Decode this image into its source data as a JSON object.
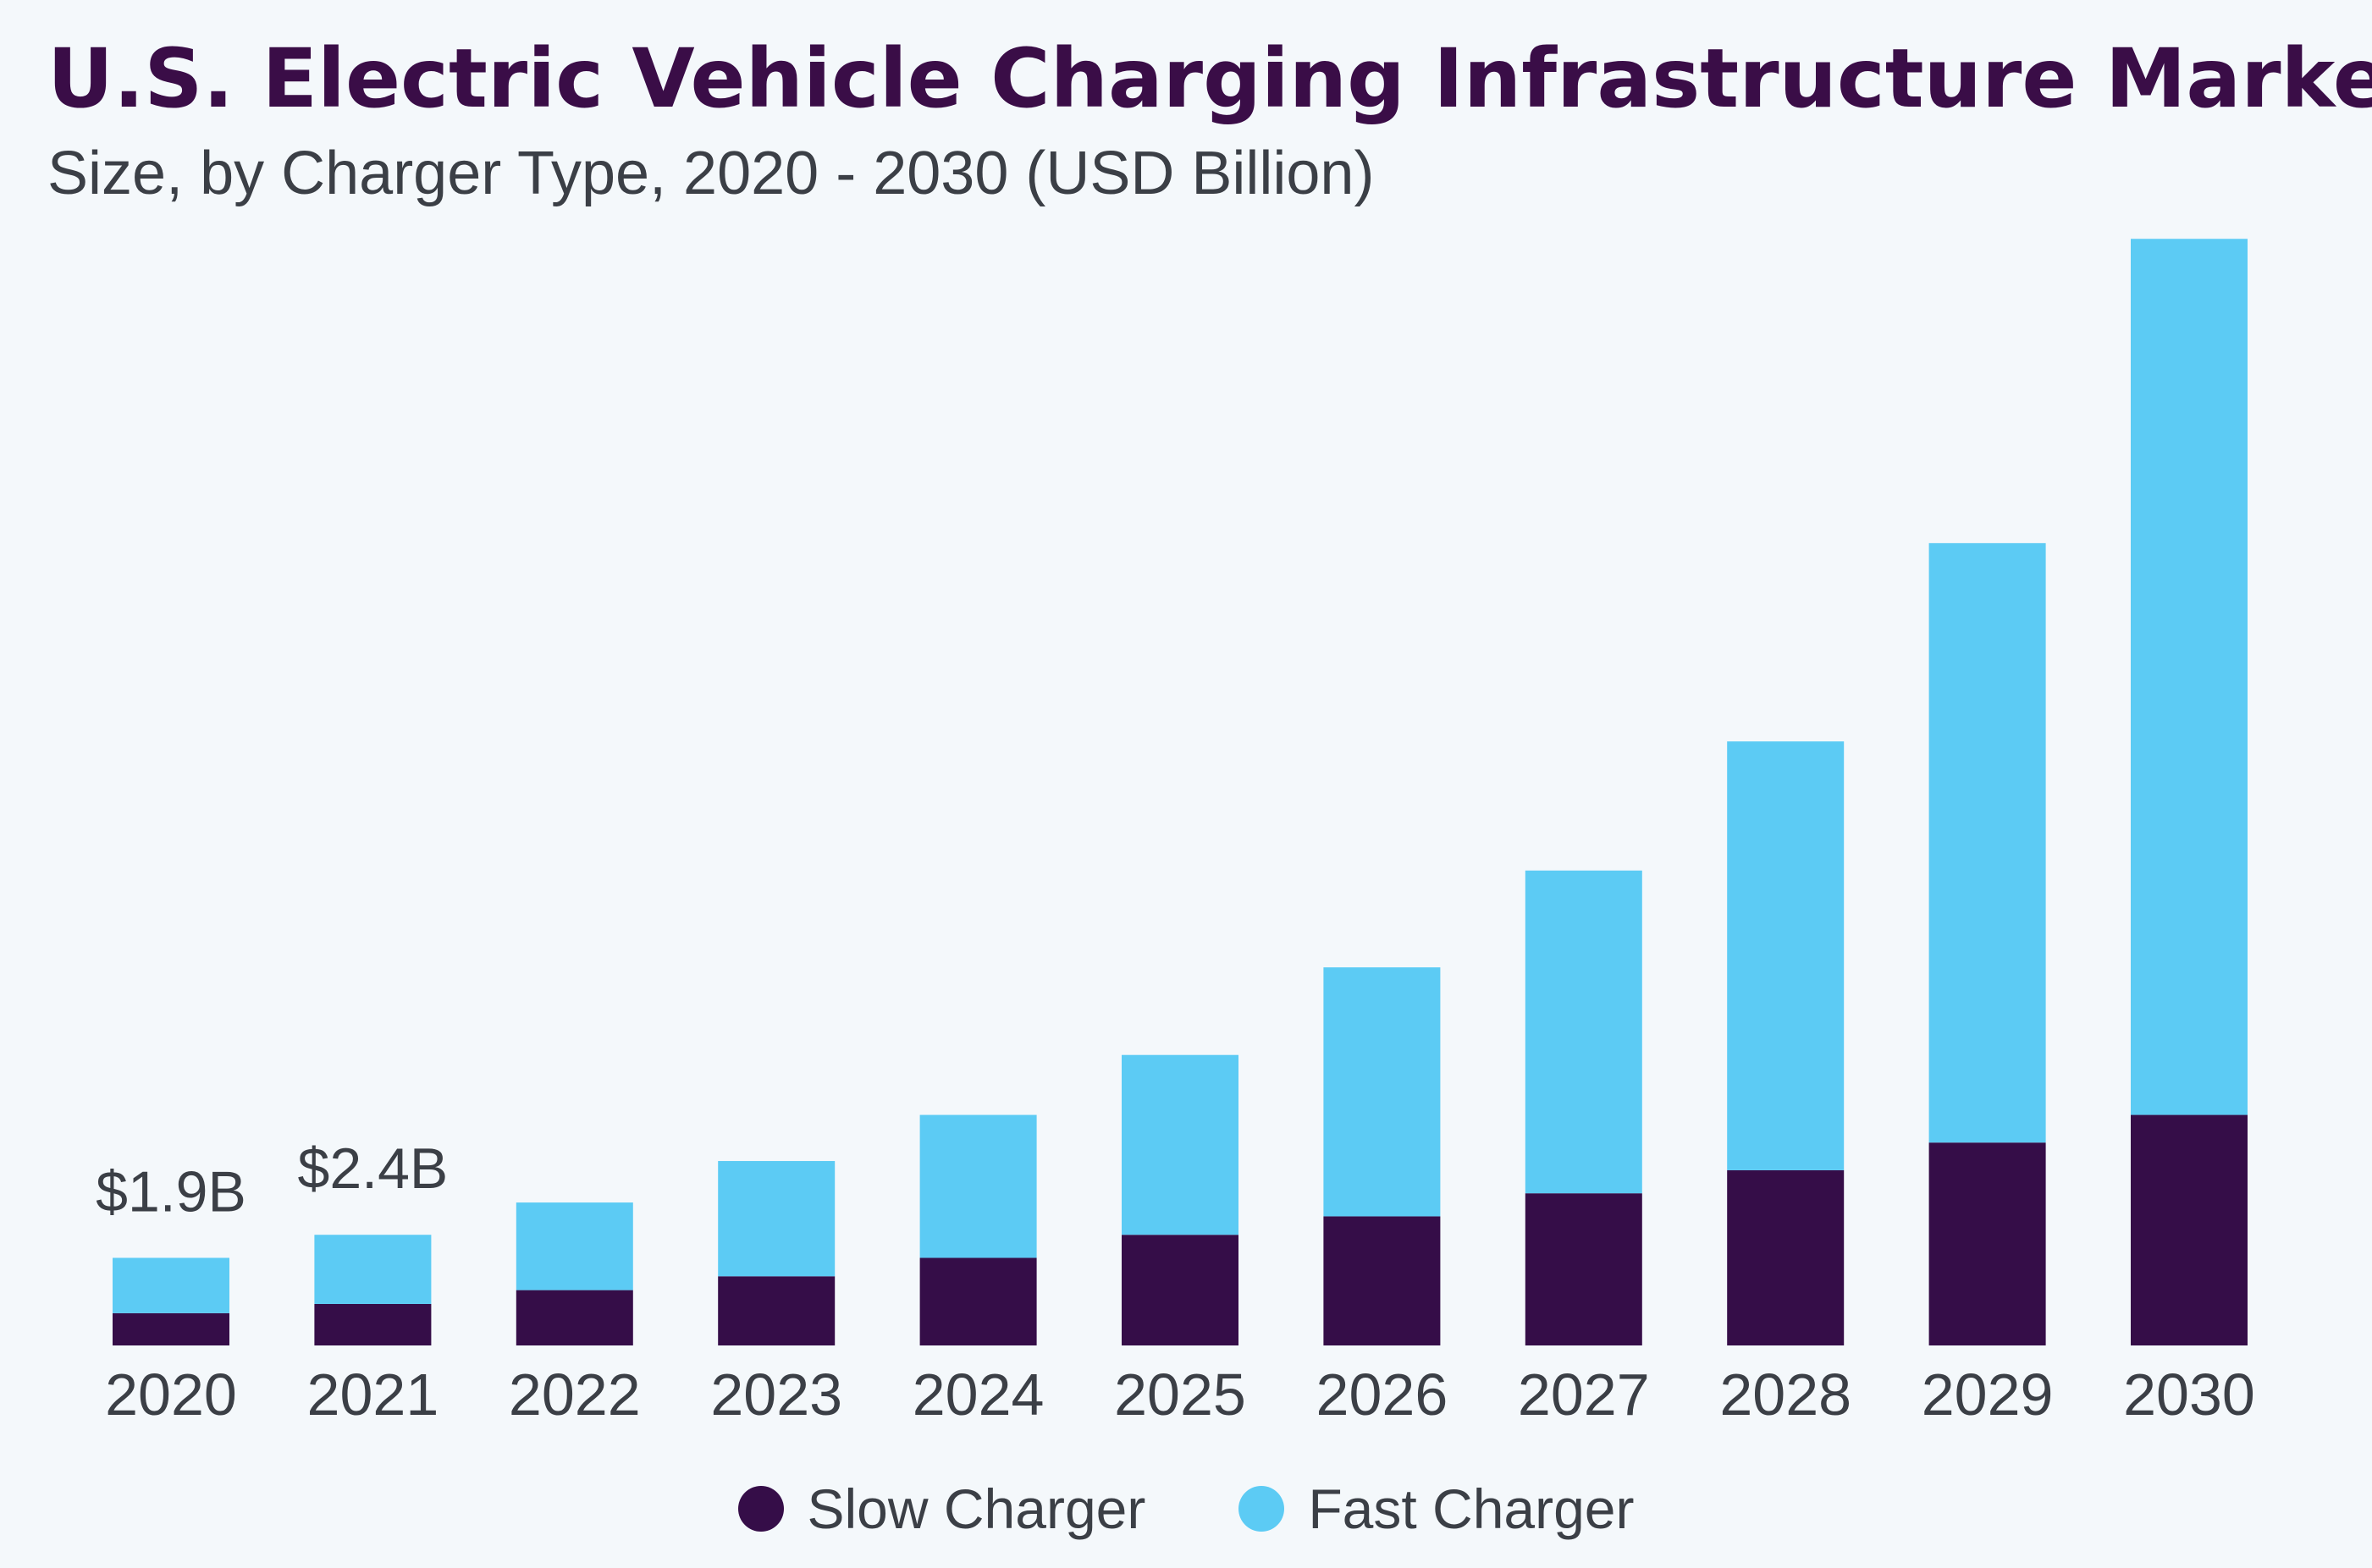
{
  "chart_data": {
    "type": "bar",
    "stacked": true,
    "title": "U.S. Electric Vehicle Charging Infrastructure Market",
    "subtitle": "Size, by Charger Type, 2020 - 2030 (USD Billion)",
    "categories": [
      "2020",
      "2021",
      "2022",
      "2023",
      "2024",
      "2025",
      "2026",
      "2027",
      "2028",
      "2029",
      "2030"
    ],
    "series": [
      {
        "name": "Slow Charger",
        "color": "#350d48",
        "values": [
          0.7,
          0.9,
          1.2,
          1.5,
          1.9,
          2.4,
          2.8,
          3.3,
          3.8,
          4.4,
          5.0
        ]
      },
      {
        "name": "Fast Charger",
        "color": "#5ccbf4",
        "values": [
          1.2,
          1.5,
          1.9,
          2.5,
          3.1,
          3.9,
          5.4,
          7.0,
          9.3,
          13.0,
          19.0
        ]
      }
    ],
    "annotations": [
      {
        "category": "2020",
        "text": "$1.9B"
      },
      {
        "category": "2021",
        "text": "$2.4B"
      }
    ],
    "ylim": [
      0,
      24.5
    ],
    "grid": false,
    "legend_position": "bottom"
  }
}
